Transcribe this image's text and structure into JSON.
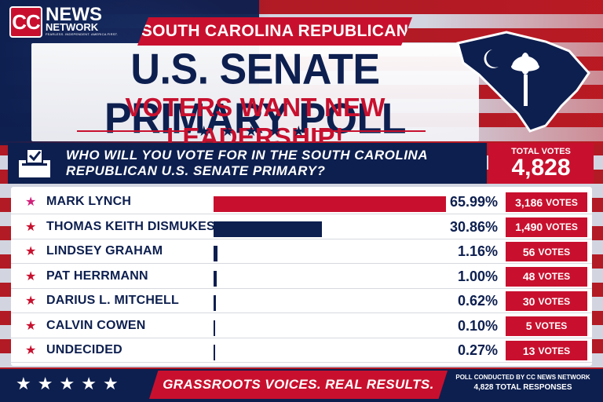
{
  "brand": {
    "logo_mark": "CC",
    "logo_news": "NEWS",
    "logo_network": "NETWORK",
    "logo_tagline": "FEARLESS. INDEPENDENT. AMERICA FIRST."
  },
  "header": {
    "banner": "SOUTH CAROLINA REPUBLICAN",
    "title": "U.S. SENATE PRIMARY POLL",
    "subtitle": "VOTERS WANT NEW LEADERSHIP!"
  },
  "question": {
    "text_line1": "WHO WILL YOU VOTE FOR IN THE SOUTH CAROLINA",
    "text_line2": "REPUBLICAN U.S. SENATE PRIMARY?",
    "icon": "ballot-box-icon"
  },
  "total": {
    "label": "TOTAL VOTES",
    "value": "4,828"
  },
  "colors": {
    "navy": "#0d1f4f",
    "red": "#c8102e",
    "leader_star": "#d11f7a"
  },
  "chart_data": {
    "type": "bar",
    "title": "U.S. SENATE PRIMARY POLL",
    "categories": [
      "MARK LYNCH",
      "THOMAS KEITH DISMUKES",
      "LINDSEY GRAHAM",
      "PAT HERRMANN",
      "DARIUS L. MITCHELL",
      "CALVIN COWEN",
      "UNDECIDED"
    ],
    "values": [
      65.99,
      30.86,
      1.16,
      1.0,
      0.62,
      0.1,
      0.27
    ],
    "percent_labels": [
      "65.99%",
      "30.86%",
      "1.16%",
      "1.00%",
      "0.62%",
      "0.10%",
      "0.27%"
    ],
    "votes": [
      3186,
      1490,
      56,
      48,
      30,
      5,
      13
    ],
    "vote_labels": [
      "3,186",
      "1,490",
      "56",
      "48",
      "30",
      "5",
      "13"
    ],
    "votes_suffix": "VOTES",
    "bar_colors": [
      "#c8102e",
      "#0d1f4f",
      "#0d1f4f",
      "#0d1f4f",
      "#0d1f4f",
      "#0d1f4f",
      "#0d1f4f"
    ],
    "xlim": [
      0,
      66
    ]
  },
  "footer": {
    "banner": "GRASSROOTS VOICES. REAL RESULTS.",
    "note_line1": "POLL CONDUCTED BY CC NEWS NETWORK",
    "note_line2": "4,828 TOTAL RESPONSES"
  }
}
